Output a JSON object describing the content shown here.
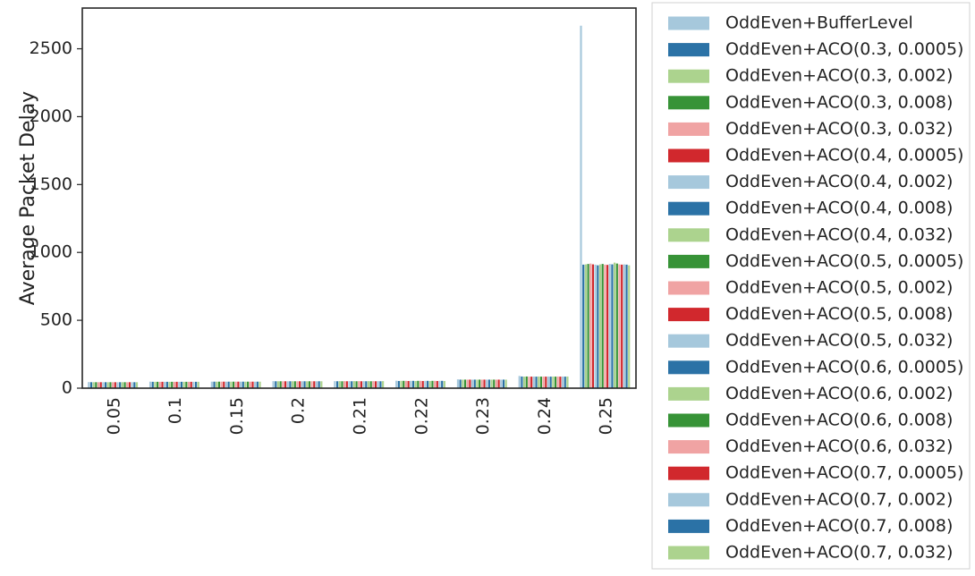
{
  "chart_data": {
    "type": "bar",
    "ylabel": "Average Packet Delay",
    "xlabel": "",
    "categories": [
      "0.05",
      "0.1",
      "0.15",
      "0.2",
      "0.21",
      "0.22",
      "0.23",
      "0.24",
      "0.25"
    ],
    "ylim": [
      0,
      2800
    ],
    "yticks": [
      0,
      500,
      1000,
      1500,
      2000,
      2500
    ],
    "grid": false,
    "legend_position": "outside-right",
    "series": [
      {
        "name": "OddEven+BufferLevel",
        "color": "#a6c8dc",
        "values": [
          45,
          48,
          48,
          52,
          52,
          55,
          65,
          90,
          2670
        ]
      },
      {
        "name": "OddEven+ACO(0.3, 0.0005)",
        "color": "#2b72a6",
        "values": [
          44,
          47,
          48,
          51,
          51,
          53,
          63,
          86,
          910
        ]
      },
      {
        "name": "OddEven+ACO(0.3, 0.002)",
        "color": "#acd38e",
        "values": [
          44,
          47,
          48,
          51,
          52,
          54,
          63,
          85,
          912
        ]
      },
      {
        "name": "OddEven+ACO(0.3, 0.008)",
        "color": "#379337",
        "values": [
          44,
          47,
          48,
          51,
          51,
          54,
          63,
          86,
          915
        ]
      },
      {
        "name": "OddEven+ACO(0.3, 0.032)",
        "color": "#f0a3a3",
        "values": [
          44,
          47,
          48,
          51,
          52,
          54,
          63,
          85,
          918
        ]
      },
      {
        "name": "OddEven+ACO(0.4, 0.0005)",
        "color": "#d1282d",
        "values": [
          44,
          47,
          48,
          51,
          51,
          53,
          63,
          85,
          912
        ]
      },
      {
        "name": "OddEven+ACO(0.4, 0.002)",
        "color": "#a6c8dc",
        "values": [
          44,
          47,
          48,
          51,
          52,
          54,
          63,
          86,
          910
        ]
      },
      {
        "name": "OddEven+ACO(0.4, 0.008)",
        "color": "#2b72a6",
        "values": [
          44,
          47,
          48,
          51,
          51,
          54,
          63,
          85,
          905
        ]
      },
      {
        "name": "OddEven+ACO(0.4, 0.032)",
        "color": "#acd38e",
        "values": [
          44,
          47,
          48,
          51,
          52,
          53,
          63,
          86,
          912
        ]
      },
      {
        "name": "OddEven+ACO(0.5, 0.0005)",
        "color": "#379337",
        "values": [
          44,
          47,
          48,
          51,
          51,
          54,
          63,
          85,
          915
        ]
      },
      {
        "name": "OddEven+ACO(0.5, 0.002)",
        "color": "#f0a3a3",
        "values": [
          44,
          47,
          48,
          51,
          52,
          54,
          63,
          86,
          910
        ]
      },
      {
        "name": "OddEven+ACO(0.5, 0.008)",
        "color": "#d1282d",
        "values": [
          44,
          47,
          48,
          51,
          51,
          53,
          63,
          85,
          908
        ]
      },
      {
        "name": "OddEven+ACO(0.5, 0.032)",
        "color": "#a6c8dc",
        "values": [
          44,
          47,
          48,
          51,
          52,
          54,
          63,
          86,
          915
        ]
      },
      {
        "name": "OddEven+ACO(0.6, 0.0005)",
        "color": "#2b72a6",
        "values": [
          44,
          47,
          48,
          51,
          51,
          54,
          63,
          85,
          912
        ]
      },
      {
        "name": "OddEven+ACO(0.6, 0.002)",
        "color": "#acd38e",
        "values": [
          44,
          47,
          48,
          51,
          52,
          53,
          63,
          86,
          925
        ]
      },
      {
        "name": "OddEven+ACO(0.6, 0.008)",
        "color": "#379337",
        "values": [
          44,
          47,
          48,
          51,
          51,
          54,
          63,
          85,
          918
        ]
      },
      {
        "name": "OddEven+ACO(0.6, 0.032)",
        "color": "#f0a3a3",
        "values": [
          44,
          47,
          48,
          51,
          52,
          54,
          63,
          86,
          912
        ]
      },
      {
        "name": "OddEven+ACO(0.7, 0.0005)",
        "color": "#d1282d",
        "values": [
          44,
          47,
          48,
          51,
          51,
          53,
          63,
          85,
          910
        ]
      },
      {
        "name": "OddEven+ACO(0.7, 0.002)",
        "color": "#a6c8dc",
        "values": [
          44,
          47,
          48,
          51,
          52,
          54,
          63,
          86,
          912
        ]
      },
      {
        "name": "OddEven+ACO(0.7, 0.008)",
        "color": "#2b72a6",
        "values": [
          44,
          47,
          48,
          51,
          51,
          54,
          63,
          85,
          910
        ]
      },
      {
        "name": "OddEven+ACO(0.7, 0.032)",
        "color": "#acd38e",
        "values": [
          44,
          47,
          48,
          51,
          52,
          53,
          63,
          86,
          905
        ]
      }
    ]
  }
}
